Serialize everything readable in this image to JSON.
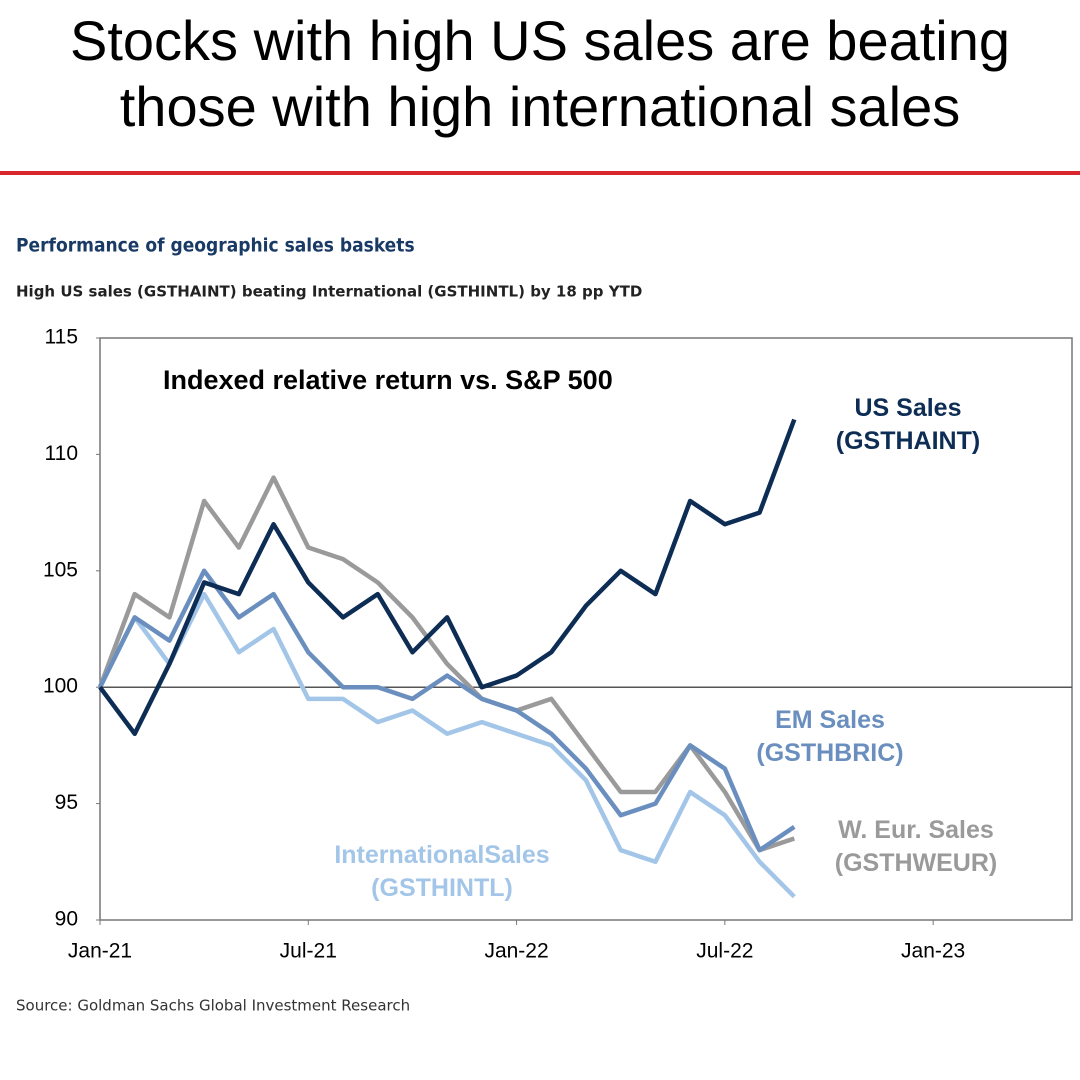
{
  "header": {
    "title": "Stocks with high US sales are beating those with high international sales"
  },
  "chart_data": {
    "type": "line",
    "title": "Performance of geographic sales baskets",
    "subtitle": "High US sales (GSTHAINT) beating International (GSTHINTL) by 18 pp YTD",
    "annotation": "Indexed relative return vs. S&P 500",
    "source": "Source: Goldman Sachs Global Investment Research",
    "x": [
      "2021-01",
      "2021-02",
      "2021-03",
      "2021-04",
      "2021-05",
      "2021-06",
      "2021-07",
      "2021-08",
      "2021-09",
      "2021-10",
      "2021-11",
      "2021-12",
      "2022-01",
      "2022-02",
      "2022-03",
      "2022-04",
      "2022-05",
      "2022-06",
      "2022-07",
      "2022-08",
      "2022-09"
    ],
    "series": [
      {
        "name": "US Sales (GSTHAINT)",
        "color": "#0d2d55",
        "values": [
          100,
          98,
          101,
          104.5,
          104,
          107,
          104.5,
          103,
          104,
          101.5,
          103,
          100,
          100.5,
          101.5,
          103.5,
          105,
          104,
          108,
          107,
          107.5,
          111.5
        ]
      },
      {
        "name": "EM Sales (GSTHBRIC)",
        "color": "#6a8fbf",
        "values": [
          100,
          103,
          102,
          105,
          103,
          104,
          101.5,
          100,
          100,
          99.5,
          100.5,
          99.5,
          99,
          98,
          96.5,
          94.5,
          95,
          97.5,
          96.5,
          93,
          94
        ]
      },
      {
        "name": "W. Eur. Sales (GSTHWEUR)",
        "color": "#9a9a9a",
        "values": [
          100,
          104,
          103,
          108,
          106,
          109,
          106,
          105.5,
          104.5,
          103,
          101,
          99.5,
          99,
          99.5,
          97.5,
          95.5,
          95.5,
          97.5,
          95.5,
          93,
          93.5
        ]
      },
      {
        "name": "InternationalSales (GSTHINTL)",
        "color": "#a3c6e8",
        "values": [
          100,
          103,
          101,
          104,
          101.5,
          102.5,
          99.5,
          99.5,
          98.5,
          99,
          98,
          98.5,
          98,
          97.5,
          96,
          93,
          92.5,
          95.5,
          94.5,
          92.5,
          91
        ]
      }
    ],
    "reference_line": 100,
    "xlim": [
      "2021-01",
      "2023-05"
    ],
    "xticks": [
      {
        "value": "2021-01",
        "label": "Jan-21"
      },
      {
        "value": "2021-07",
        "label": "Jul-21"
      },
      {
        "value": "2022-01",
        "label": "Jan-22"
      },
      {
        "value": "2022-07",
        "label": "Jul-22"
      },
      {
        "value": "2023-01",
        "label": "Jan-23"
      }
    ],
    "ylim": [
      90,
      115
    ],
    "yticks": [
      90,
      95,
      100,
      105,
      110,
      115
    ],
    "grid": false
  }
}
